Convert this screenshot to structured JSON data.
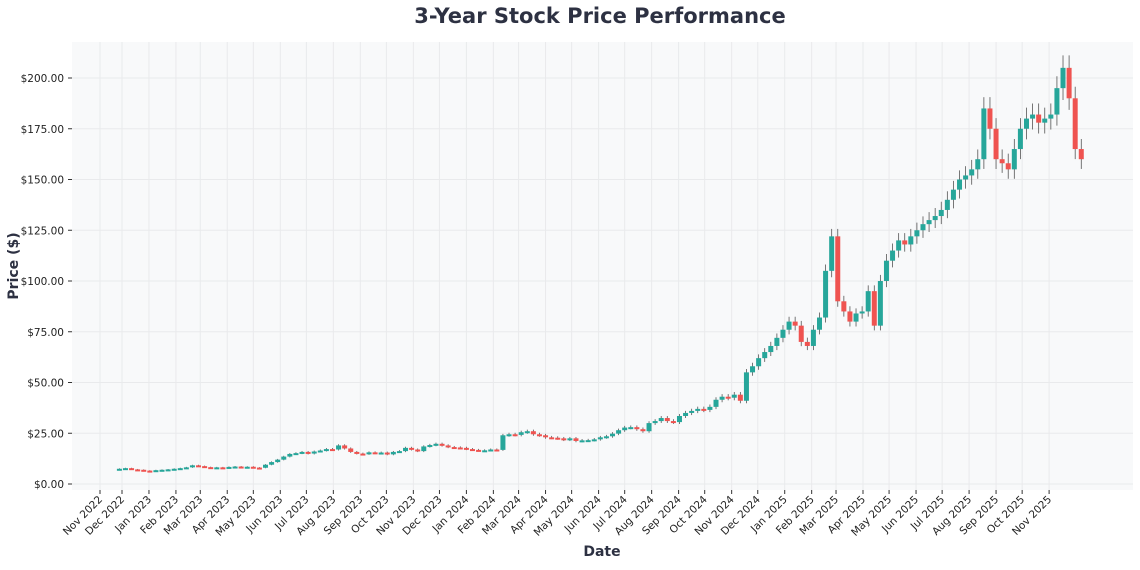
{
  "chart_data": {
    "type": "candlestick",
    "title": "3-Year Stock Price Performance",
    "xlabel": "Date",
    "ylabel": "Price ($)",
    "ylim": [
      0,
      210
    ],
    "y_ticks": [
      "$0.00",
      "$25.00",
      "$50.00",
      "$75.00",
      "$100.00",
      "$125.00",
      "$150.00",
      "$175.00",
      "$200.00"
    ],
    "y_tick_values": [
      0,
      25,
      50,
      75,
      100,
      125,
      150,
      175,
      200
    ],
    "x_ticks": [
      {
        "label": "Nov 2022",
        "date": "2022-11-28"
      },
      {
        "label": "Dec 2022",
        "date": "2022-12-01"
      },
      {
        "label": "Jan 2023",
        "date": "2023-01-01"
      },
      {
        "label": "Feb 2023",
        "date": "2023-02-01"
      },
      {
        "label": "Mar 2023",
        "date": "2023-03-01"
      },
      {
        "label": "Apr 2023",
        "date": "2023-04-01"
      },
      {
        "label": "May 2023",
        "date": "2023-05-01"
      },
      {
        "label": "Jun 2023",
        "date": "2023-06-01"
      },
      {
        "label": "Jul 2023",
        "date": "2023-07-01"
      },
      {
        "label": "Aug 2023",
        "date": "2023-08-01"
      },
      {
        "label": "Sep 2023",
        "date": "2023-09-01"
      },
      {
        "label": "Oct 2023",
        "date": "2023-10-01"
      },
      {
        "label": "Nov 2023",
        "date": "2023-11-01"
      },
      {
        "label": "Dec 2023",
        "date": "2023-12-01"
      },
      {
        "label": "Jan 2024",
        "date": "2024-01-01"
      },
      {
        "label": "Feb 2024",
        "date": "2024-02-01"
      },
      {
        "label": "Mar 2024",
        "date": "2024-03-01"
      },
      {
        "label": "Apr 2024",
        "date": "2024-04-01"
      },
      {
        "label": "May 2024",
        "date": "2024-05-01"
      },
      {
        "label": "Jun 2024",
        "date": "2024-06-01"
      },
      {
        "label": "Jul 2024",
        "date": "2024-07-01"
      },
      {
        "label": "Aug 2024",
        "date": "2024-08-01"
      },
      {
        "label": "Sep 2024",
        "date": "2024-09-01"
      },
      {
        "label": "Oct 2024",
        "date": "2024-10-01"
      },
      {
        "label": "Nov 2024",
        "date": "2024-11-01"
      },
      {
        "label": "Dec 2024",
        "date": "2024-12-01"
      },
      {
        "label": "Jan 2025",
        "date": "2025-01-01"
      },
      {
        "label": "Feb 2025",
        "date": "2025-02-01"
      },
      {
        "label": "Mar 2025",
        "date": "2025-03-01"
      },
      {
        "label": "Apr 2025",
        "date": "2025-04-01"
      },
      {
        "label": "May 2025",
        "date": "2025-05-01"
      },
      {
        "label": "Jun 2025",
        "date": "2025-06-01"
      },
      {
        "label": "Jul 2025",
        "date": "2025-07-01"
      },
      {
        "label": "Aug 2025",
        "date": "2025-08-01"
      },
      {
        "label": "Sep 2025",
        "date": "2025-09-01"
      },
      {
        "label": "Oct 2025",
        "date": "2025-10-01"
      },
      {
        "label": "Nov 2025",
        "date": "2025-11-01"
      }
    ],
    "grid": true,
    "colors": {
      "up": "#26a69a",
      "down": "#ef5350",
      "wick": "#555555",
      "background": "#f8f9fa"
    },
    "series_start": "2022-11-28",
    "interval_days": 7,
    "first_open": 7.3,
    "closes": [
      7.5,
      7.8,
      7.2,
      7.0,
      6.6,
      6.5,
      6.8,
      7.0,
      7.2,
      7.5,
      7.8,
      8.2,
      9.2,
      8.8,
      8.3,
      8.0,
      8.2,
      8.0,
      8.4,
      8.6,
      8.3,
      8.5,
      8.1,
      8.0,
      9.5,
      10.8,
      12.0,
      13.5,
      14.8,
      15.2,
      15.8,
      15.0,
      16.0,
      16.5,
      17.2,
      17.0,
      19.0,
      17.5,
      15.8,
      15.0,
      14.8,
      15.6,
      15.2,
      15.5,
      14.6,
      15.8,
      16.2,
      17.8,
      17.0,
      16.2,
      18.5,
      19.2,
      19.8,
      19.0,
      18.2,
      18.0,
      17.8,
      17.2,
      16.8,
      16.5,
      16.6,
      17.0,
      16.8,
      24.0,
      24.5,
      24.2,
      25.5,
      26.0,
      24.5,
      24.0,
      23.0,
      22.8,
      22.5,
      21.8,
      22.5,
      21.2,
      21.5,
      21.6,
      22.0,
      23.0,
      23.5,
      24.8,
      26.5,
      27.8,
      28.0,
      27.0,
      26.0,
      30.0,
      31.0,
      32.5,
      31.0,
      30.5,
      33.5,
      35.0,
      36.0,
      37.0,
      36.5,
      38.0,
      41.5,
      43.0,
      42.5,
      44.0,
      41.0,
      55.0,
      58.0,
      62.0,
      65.0,
      68.0,
      72.0,
      76.0,
      80.0,
      78.0,
      70.0,
      68.0,
      76.0,
      82.0,
      105.0,
      122.0,
      90.0,
      85.0,
      80.0,
      84.0,
      85.0,
      95.0,
      78.0,
      100.0,
      110.0,
      115.0,
      120.0,
      118.0,
      122.0,
      125.0,
      128.0,
      130.0,
      132.0,
      135.0,
      140.0,
      145.0,
      150.0,
      152.0,
      155.0,
      160.0,
      185.0,
      175.0,
      160.0,
      158.0,
      155.0,
      165.0,
      175.0,
      180.0,
      182.0,
      178.0,
      180.0,
      182.0,
      195.0,
      205.0,
      190.0,
      165.0,
      160.0
    ]
  }
}
